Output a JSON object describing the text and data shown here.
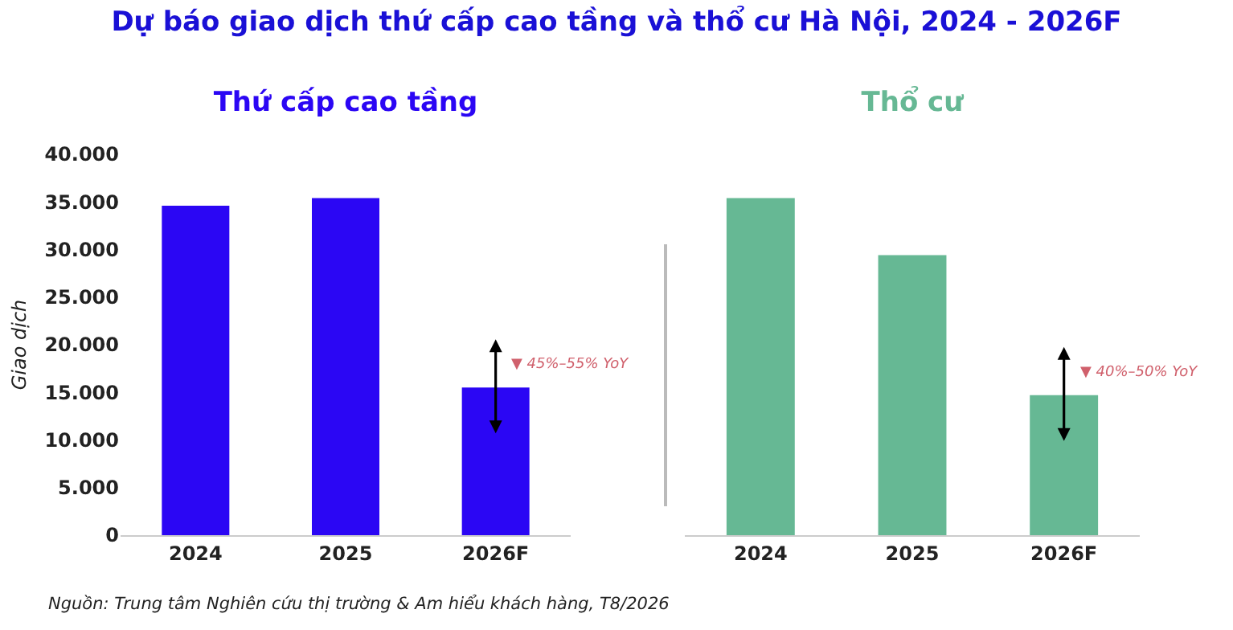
{
  "chart_data": [
    {
      "type": "bar",
      "title": "Thứ cấp cao tầng",
      "ylabel": "Giao dịch",
      "categories": [
        "2024",
        "2025",
        "2026F"
      ],
      "values": [
        34600,
        35400,
        15500
      ],
      "color": "#2b06f4",
      "ylim": [
        0,
        40000
      ],
      "yticks": [
        {
          "value": 0,
          "label": "0"
        },
        {
          "value": 5000,
          "label": "5.000"
        },
        {
          "value": 10000,
          "label": "10.000"
        },
        {
          "value": 15000,
          "label": "15.000"
        },
        {
          "value": 20000,
          "label": "20.000"
        },
        {
          "value": 25000,
          "label": "25.000"
        },
        {
          "value": 30000,
          "label": "30.000"
        },
        {
          "value": 35000,
          "label": "35.000"
        },
        {
          "value": 40000,
          "label": "40.000"
        }
      ],
      "annotations": [
        "Dự báo giao dịch thứ cấp cao tầng và thổ cư Hà Nội, 2024 - 2026F",
        "▼ 45%–55% YoY"
      ]
    },
    {
      "type": "bar",
      "title": "Thổ cư",
      "categories": [
        "2024",
        "2025",
        "2026F"
      ],
      "values": [
        35400,
        29400,
        14700
      ],
      "color": "#66b894",
      "ylim": [
        0,
        40000
      ],
      "tick_labels": "x",
      "annotations": [
        "▼ 40%–50% YoY",
        "Nguồn: Trung tâm Nghiên cứu thị trường & Am hiểu khách hàng, T8/2026"
      ]
    }
  ]
}
